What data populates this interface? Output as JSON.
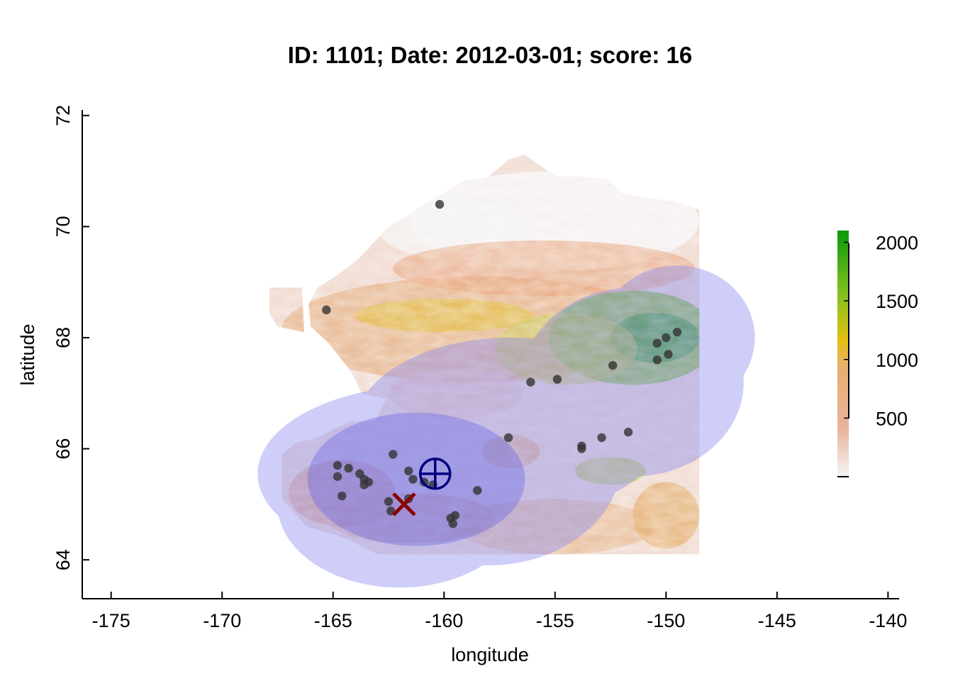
{
  "title": "ID: 1101;  Date: 2012-03-01;  score: 16",
  "xlabel": "longitude",
  "ylabel": "latitude",
  "map": {
    "xlim": [
      -176.3,
      -139.5
    ],
    "ylim": [
      63.3,
      72.1
    ],
    "xticks": [
      {
        "value": -175,
        "label": "-175"
      },
      {
        "value": -170,
        "label": "-170"
      },
      {
        "value": -165,
        "label": "-165"
      },
      {
        "value": -160,
        "label": "-160"
      },
      {
        "value": -155,
        "label": "-155"
      },
      {
        "value": -150,
        "label": "-150"
      },
      {
        "value": -145,
        "label": "-145"
      },
      {
        "value": -140,
        "label": "-140"
      }
    ],
    "yticks": [
      {
        "value": 64,
        "label": "64"
      },
      {
        "value": 66,
        "label": "66"
      },
      {
        "value": 68,
        "label": "68"
      },
      {
        "value": 70,
        "label": "70"
      },
      {
        "value": 72,
        "label": "72"
      }
    ],
    "elevation_colorbar": {
      "range": [
        0,
        2100
      ],
      "ticks": [
        {
          "value": 500,
          "label": "500"
        },
        {
          "value": 1000,
          "label": "1000"
        },
        {
          "value": 1500,
          "label": "1500"
        },
        {
          "value": 2000,
          "label": "2000"
        }
      ],
      "colors": [
        "#f4f4f4",
        "#e8b39a",
        "#e6b070",
        "#e4c010",
        "#7fc020",
        "#0a9a0a"
      ]
    },
    "stations": [
      [
        -160.2,
        70.4
      ],
      [
        -165.3,
        68.5
      ],
      [
        -164.8,
        65.7
      ],
      [
        -164.3,
        65.65
      ],
      [
        -164.8,
        65.5
      ],
      [
        -163.8,
        65.55
      ],
      [
        -163.6,
        65.45
      ],
      [
        -163.4,
        65.4
      ],
      [
        -163.6,
        65.35
      ],
      [
        -164.6,
        65.15
      ],
      [
        -162.3,
        65.9
      ],
      [
        -161.6,
        65.6
      ],
      [
        -161.4,
        65.45
      ],
      [
        -162.5,
        65.05
      ],
      [
        -162.4,
        64.88
      ],
      [
        -161.6,
        65.1
      ],
      [
        -160.9,
        65.4
      ],
      [
        -160.5,
        65.35
      ],
      [
        -159.7,
        64.75
      ],
      [
        -159.5,
        64.8
      ],
      [
        -159.6,
        64.65
      ],
      [
        -158.5,
        65.25
      ],
      [
        -157.1,
        66.2
      ],
      [
        -156.1,
        67.2
      ],
      [
        -154.9,
        67.25
      ],
      [
        -153.8,
        66.05
      ],
      [
        -153.8,
        66.0
      ],
      [
        -152.9,
        66.2
      ],
      [
        -151.7,
        66.3
      ],
      [
        -152.4,
        67.5
      ],
      [
        -150.4,
        67.6
      ],
      [
        -149.9,
        67.7
      ],
      [
        -150.4,
        67.9
      ],
      [
        -150.0,
        68.0
      ],
      [
        -149.5,
        68.1
      ]
    ],
    "zones": [
      {
        "lon": -160.6,
        "lat": 65.55,
        "rx": 7.8,
        "ry": 1.6
      },
      {
        "lon": -157.0,
        "lat": 66.4,
        "rx": 7.0,
        "ry": 1.6
      },
      {
        "lon": -151.5,
        "lat": 67.2,
        "rx": 5.0,
        "ry": 1.7
      },
      {
        "lon": -149.5,
        "lat": 68.0,
        "rx": 3.5,
        "ry": 1.3
      },
      {
        "lon": -162.0,
        "lat": 65.0,
        "rx": 5.5,
        "ry": 1.5
      },
      {
        "lon": -158.0,
        "lat": 65.8,
        "rx": 6.0,
        "ry": 1.9
      }
    ],
    "inner_zone": {
      "lon": -161.25,
      "lat": 65.45,
      "rx": 4.9,
      "ry": 1.2
    },
    "estimate_marker": {
      "lon": -160.4,
      "lat": 65.55,
      "symbol": "circle-plus",
      "color": "#000080"
    },
    "true_marker": {
      "lon": -161.8,
      "lat": 65.0,
      "symbol": "x",
      "color": "#8b0000"
    },
    "zone_color": "#8c8cf0",
    "station_color": "#333333"
  }
}
